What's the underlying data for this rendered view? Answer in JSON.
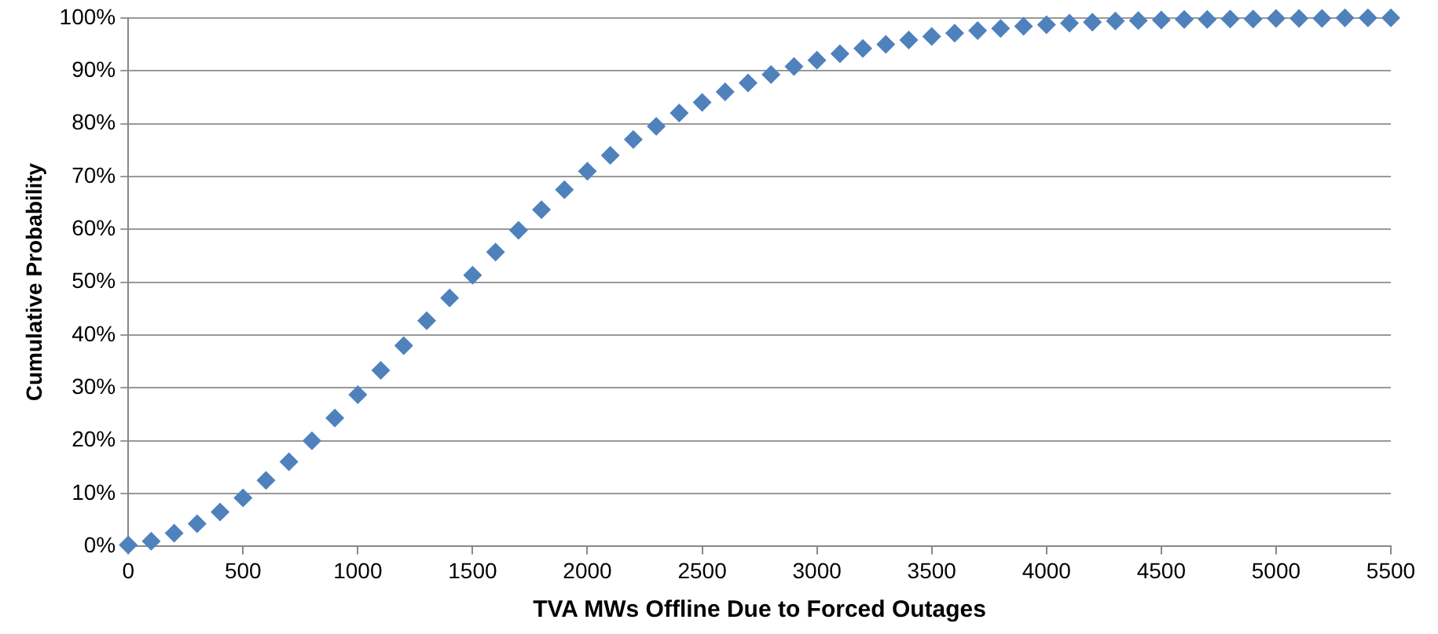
{
  "chart_data": {
    "type": "scatter",
    "xlabel": "TVA MWs Offline Due to Forced Outages",
    "ylabel": "Cumulative Probability",
    "x": [
      0,
      100,
      200,
      300,
      400,
      500,
      600,
      700,
      800,
      900,
      1000,
      1100,
      1200,
      1300,
      1400,
      1500,
      1600,
      1700,
      1800,
      1900,
      2000,
      2100,
      2200,
      2300,
      2400,
      2500,
      2600,
      2700,
      2800,
      2900,
      3000,
      3100,
      3200,
      3300,
      3400,
      3500,
      3600,
      3700,
      3800,
      3900,
      4000,
      4100,
      4200,
      4300,
      4400,
      4500,
      4600,
      4700,
      4800,
      4900,
      5000,
      5100,
      5200,
      5300,
      5400,
      5500
    ],
    "series": [
      {
        "color": "#4f81bd",
        "values": [
          0.3,
          1,
          2.5,
          4.3,
          6.5,
          9.2,
          12.5,
          16,
          20,
          24.3,
          28.7,
          33.3,
          38,
          42.7,
          47,
          51.3,
          55.7,
          59.8,
          63.7,
          67.5,
          71,
          74,
          77,
          79.5,
          82,
          84,
          86,
          87.7,
          89.3,
          90.8,
          92,
          93.2,
          94.2,
          95,
          95.8,
          96.5,
          97.1,
          97.6,
          98,
          98.4,
          98.7,
          99,
          99.2,
          99.4,
          99.5,
          99.6,
          99.7,
          99.7,
          99.8,
          99.8,
          99.9,
          99.9,
          99.9,
          100,
          100,
          100
        ]
      }
    ],
    "xlim": [
      0,
      5500
    ],
    "xticks": [
      0,
      500,
      1000,
      1500,
      2000,
      2500,
      3000,
      3500,
      4000,
      4500,
      5000,
      5500
    ],
    "ylim": [
      0,
      100
    ],
    "yticks": [
      {
        "value": 0,
        "label": "0%"
      },
      {
        "value": 10,
        "label": "10%"
      },
      {
        "value": 20,
        "label": "20%"
      },
      {
        "value": 30,
        "label": "30%"
      },
      {
        "value": 40,
        "label": "40%"
      },
      {
        "value": 50,
        "label": "50%"
      },
      {
        "value": 60,
        "label": "60%"
      },
      {
        "value": 70,
        "label": "70%"
      },
      {
        "value": 80,
        "label": "80%"
      },
      {
        "value": 90,
        "label": "90%"
      },
      {
        "value": 100,
        "label": "100%"
      }
    ],
    "grid": "y",
    "marker": "diamond",
    "legend": false
  }
}
